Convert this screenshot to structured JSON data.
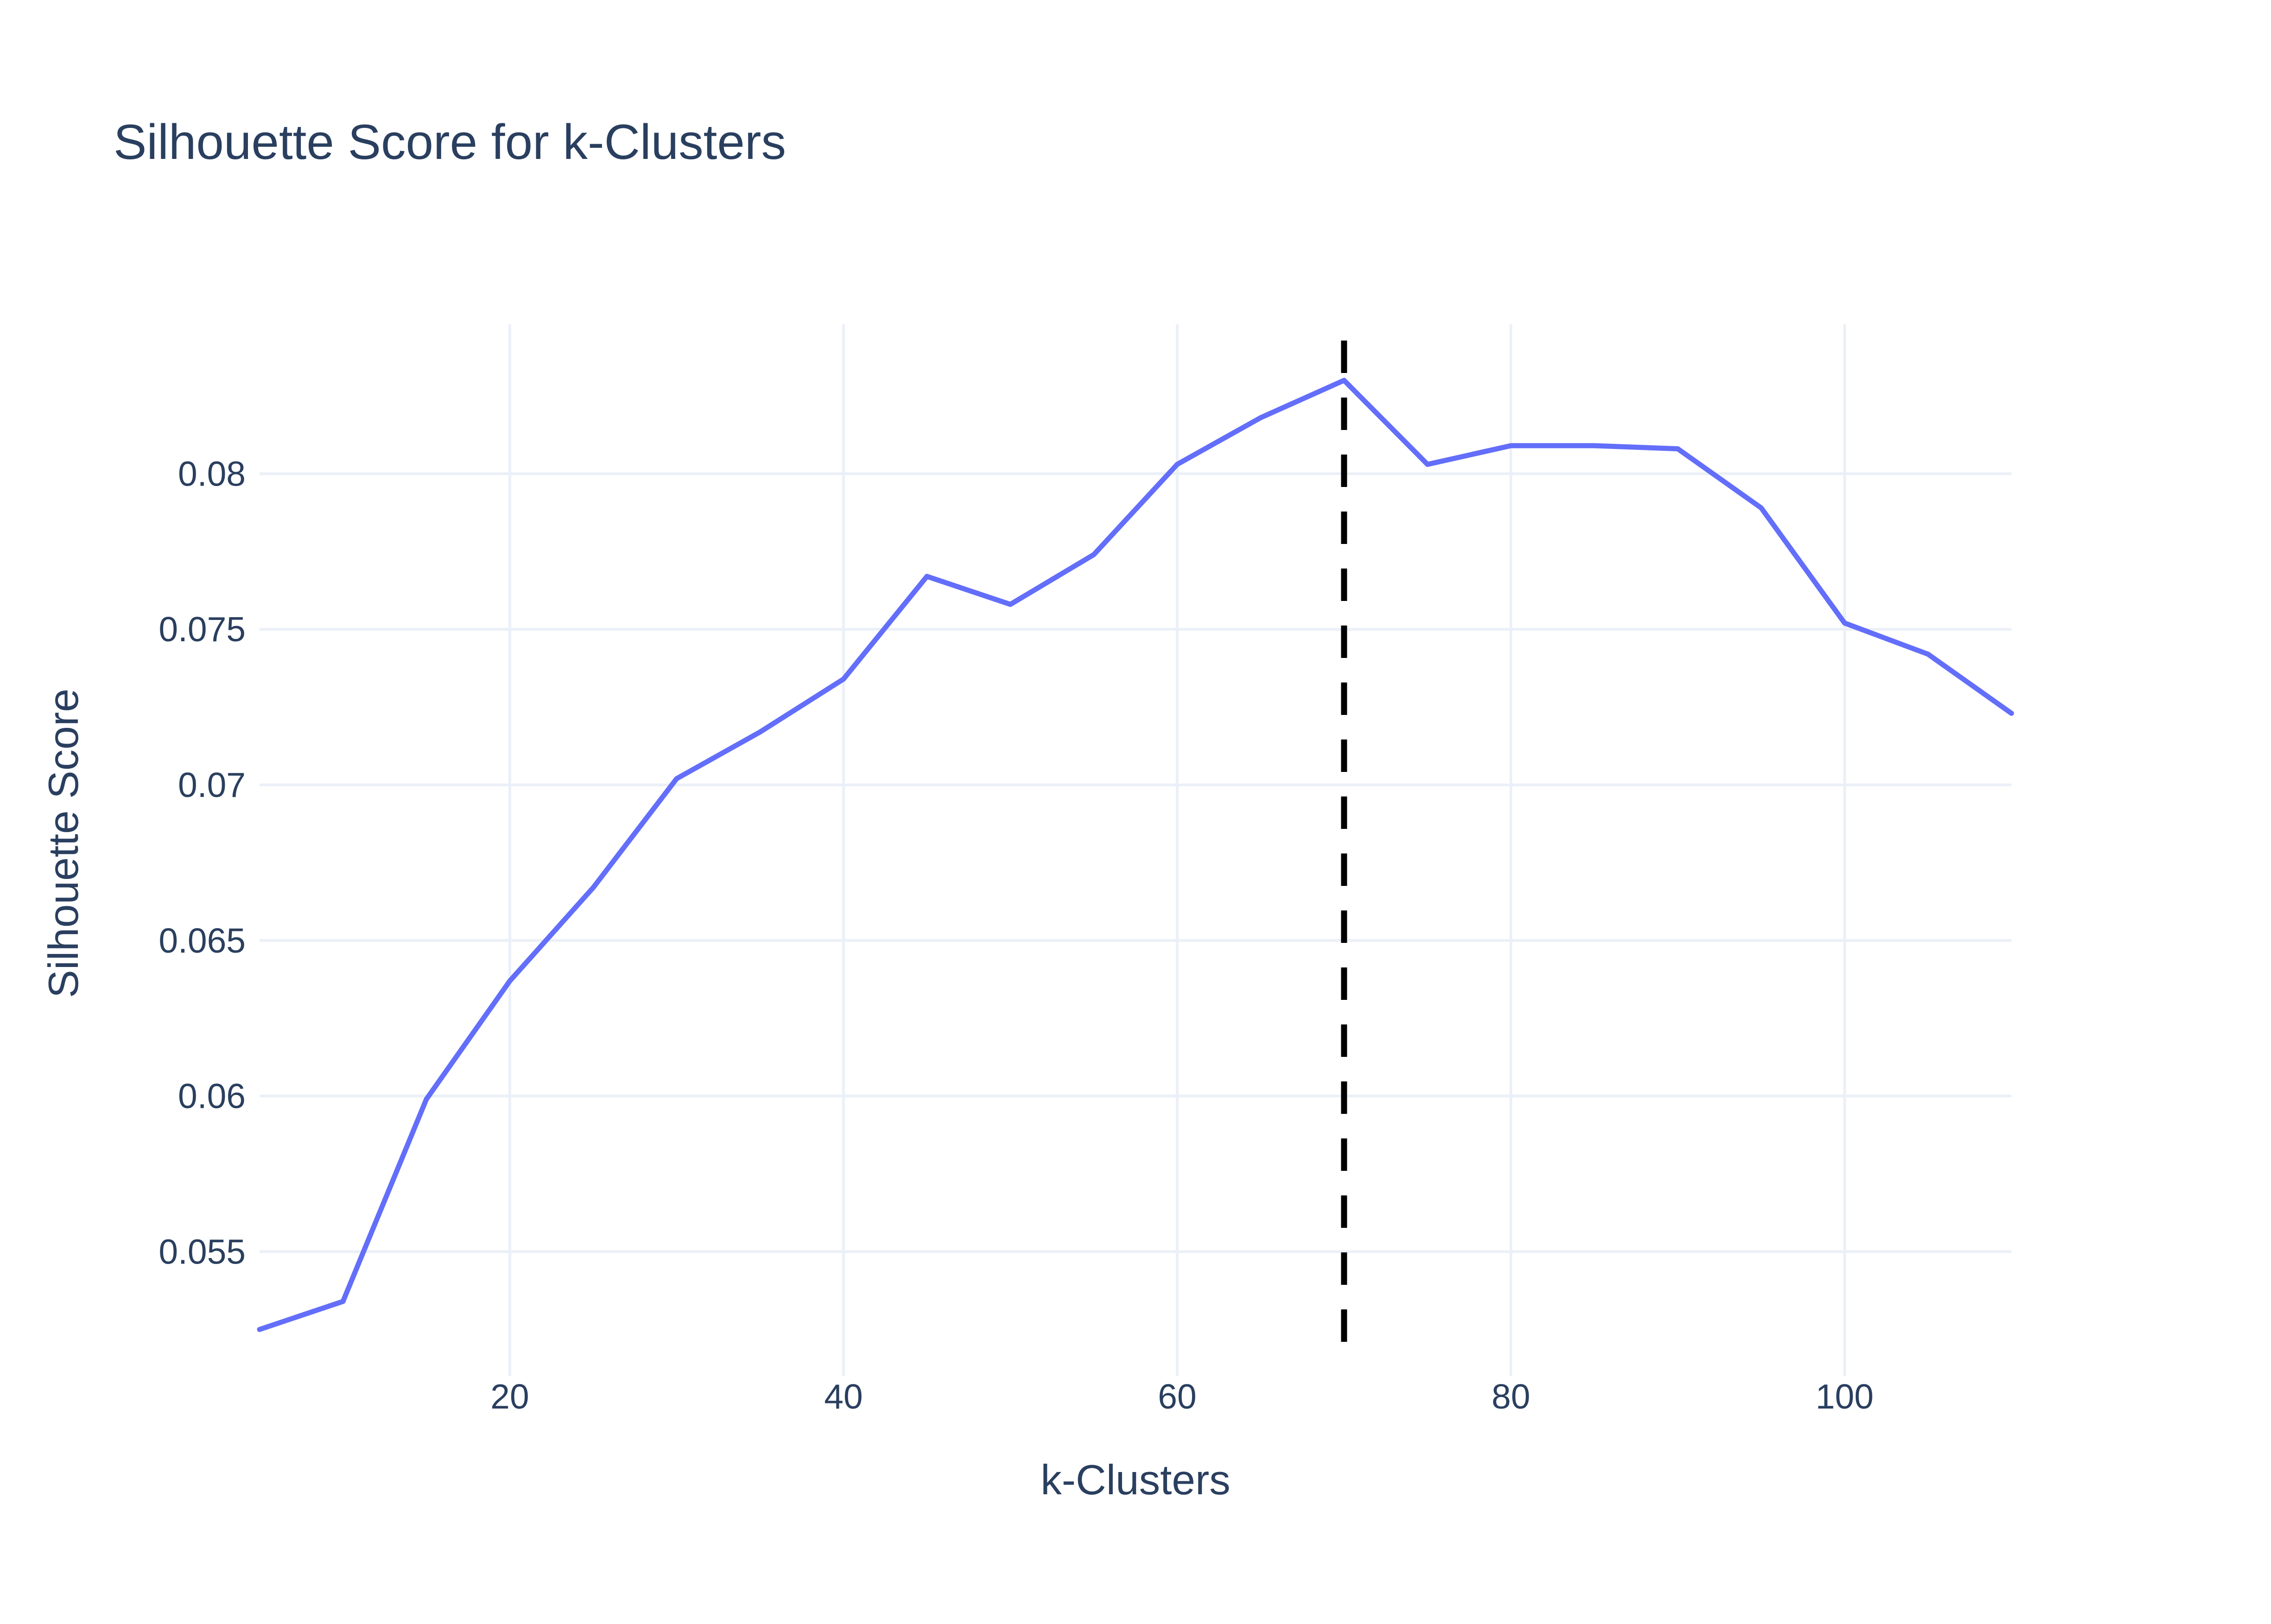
{
  "chart_data": {
    "type": "line",
    "title": "Silhouette Score for k-Clusters",
    "xlabel": "k-Clusters",
    "ylabel": "Silhouette Score",
    "xlim": [
      5,
      110
    ],
    "ylim": [
      0.051,
      0.0848
    ],
    "x_ticks": [
      20,
      40,
      60,
      80,
      100
    ],
    "x_tick_labels": [
      "20",
      "40",
      "60",
      "80",
      "100"
    ],
    "y_ticks": [
      0.055,
      0.06,
      0.065,
      0.07,
      0.075,
      0.08
    ],
    "y_tick_labels": [
      "0.055",
      "0.06",
      "0.065",
      "0.07",
      "0.075",
      "0.08"
    ],
    "grid": true,
    "series": [
      {
        "color": "#636efa",
        "x": [
          5,
          10,
          15,
          20,
          25,
          30,
          35,
          40,
          45,
          50,
          55,
          60,
          65,
          70,
          75,
          80,
          85,
          90,
          95,
          100,
          105,
          110
        ],
        "y": [
          0.0525,
          0.0534,
          0.0599,
          0.0637,
          0.0667,
          0.0702,
          0.0717,
          0.0734,
          0.0767,
          0.0758,
          0.0774,
          0.0803,
          0.0818,
          0.083,
          0.0803,
          0.0809,
          0.0809,
          0.0808,
          0.0789,
          0.0752,
          0.0742,
          0.0723
        ]
      }
    ],
    "reference_line": {
      "x": 70,
      "color": "#000000",
      "style": "dashed"
    }
  }
}
